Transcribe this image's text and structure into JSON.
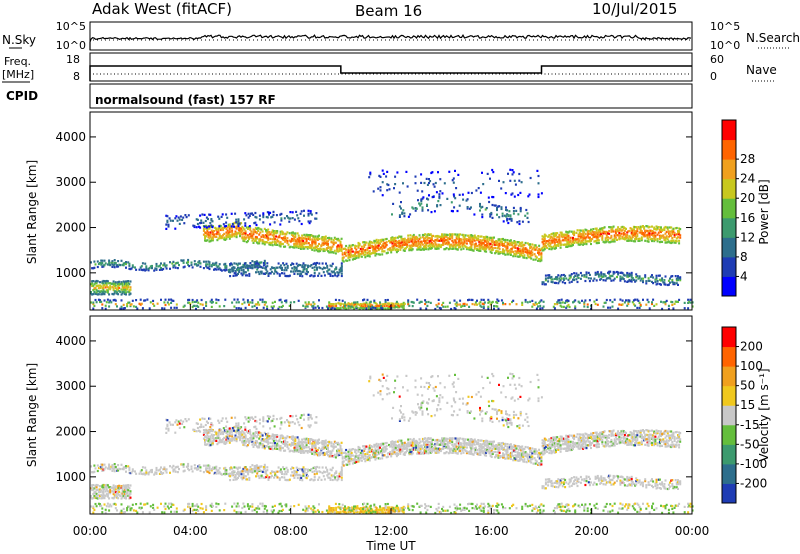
{
  "header": {
    "station": "Adak West (fitACF)",
    "beam": "Beam 16",
    "date": "10/Jul/2015"
  },
  "nsky_panel": {
    "left_label": "N.Sky",
    "left_tick_top": "10^5",
    "left_tick_bottom": "10^0",
    "right_label": "N.Search",
    "right_tick_top": "10^5",
    "right_tick_bottom": "10^0"
  },
  "freq_panel": {
    "left_label_1": "Freq.",
    "left_label_2": "[MHz]",
    "left_tick_top": "18",
    "left_tick_bottom": "8",
    "right_label": "Nave",
    "right_tick_top": "60",
    "right_tick_bottom": "0"
  },
  "cpid_panel": {
    "label": "CPID",
    "text": "normalsound (fast) 157 RF"
  },
  "chart_data": [
    {
      "type": "heatmap",
      "name": "power-panel",
      "ylabel": "Slant Range [km]",
      "yticks": [
        "1000",
        "2000",
        "3000",
        "4000"
      ],
      "ylim": [
        180,
        4550
      ],
      "xlim_hours": [
        0,
        24
      ],
      "colorbar_label": "Power [dB]",
      "colorbar_ticks": [
        "4",
        "8",
        "12",
        "16",
        "20",
        "24",
        "28"
      ],
      "colorbar_colors": [
        "#0000ff",
        "#1e3cb4",
        "#2d6e8c",
        "#3c9a6e",
        "#64be3c",
        "#c8c81e",
        "#f0a01e",
        "#ff6400",
        "#ff0000"
      ]
    },
    {
      "type": "heatmap",
      "name": "velocity-panel",
      "ylabel": "Slant Range [km]",
      "yticks": [
        "1000",
        "2000",
        "3000",
        "4000"
      ],
      "ylim": [
        180,
        4550
      ],
      "xlim_hours": [
        0,
        24
      ],
      "colorbar_label": "Velocity [m s⁻¹]",
      "colorbar_ticks": [
        "200",
        "100",
        "50",
        "15",
        "-15",
        "-50",
        "-100",
        "-200"
      ],
      "colorbar_colors": [
        "#1e3cb4",
        "#2d6e8c",
        "#3c9a6e",
        "#64be3c",
        "#c8c8c8",
        "#f0c81e",
        "#f0a01e",
        "#ff6400",
        "#ff0000"
      ]
    }
  ],
  "time_axis": {
    "label": "Time UT",
    "ticks": [
      "00:00",
      "04:00",
      "08:00",
      "12:00",
      "16:00",
      "20:00",
      "00:00"
    ]
  },
  "colors": {
    "frame": "#000000",
    "background": "#ffffff",
    "velocity_ground": "#c8c8c8"
  }
}
